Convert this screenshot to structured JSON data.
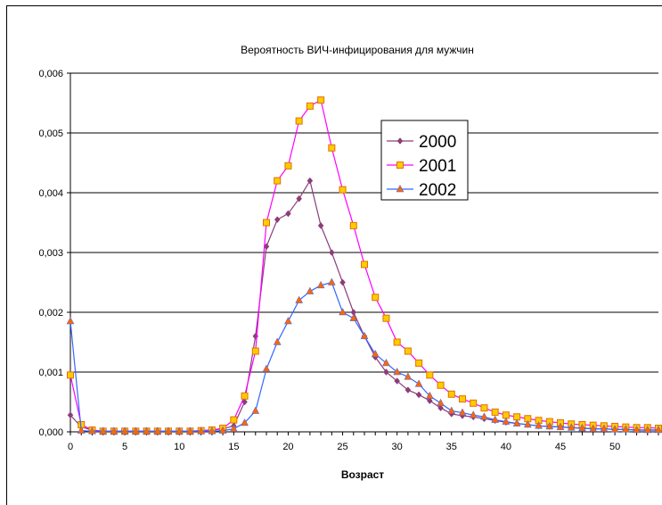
{
  "chart_data": {
    "type": "line",
    "title": "Вероятность ВИЧ-инфицирования для мужчин",
    "xlabel": "Возраст",
    "ylabel": "",
    "xlim": [
      0,
      54
    ],
    "ylim": [
      0,
      0.006
    ],
    "x_ticks": [
      0,
      5,
      10,
      15,
      20,
      25,
      30,
      35,
      40,
      45,
      50
    ],
    "x_tick_labels": [
      "0",
      "5",
      "10",
      "15",
      "20",
      "25",
      "30",
      "35",
      "40",
      "45",
      "50"
    ],
    "y_ticks": [
      0,
      0.001,
      0.002,
      0.003,
      0.004,
      0.005,
      0.006
    ],
    "y_tick_labels": [
      "0,000",
      "0,001",
      "0,002",
      "0,003",
      "0,004",
      "0,005",
      "0,006"
    ],
    "grid": true,
    "legend_position": "upper-right (inside plot)",
    "x": [
      0,
      1,
      2,
      3,
      4,
      5,
      6,
      7,
      8,
      9,
      10,
      11,
      12,
      13,
      14,
      15,
      16,
      17,
      18,
      19,
      20,
      21,
      22,
      23,
      24,
      25,
      26,
      27,
      28,
      29,
      30,
      31,
      32,
      33,
      34,
      35,
      36,
      37,
      38,
      39,
      40,
      41,
      42,
      43,
      44,
      45,
      46,
      47,
      48,
      49,
      50,
      51,
      52,
      53,
      54
    ],
    "series": [
      {
        "name": "2000",
        "color": "#8b3d7a",
        "marker": "diamond",
        "values": [
          0.00028,
          8e-05,
          3e-05,
          1e-05,
          1e-05,
          1e-05,
          1e-05,
          1e-05,
          1e-05,
          1e-05,
          1e-05,
          1e-05,
          2e-05,
          3e-05,
          5e-05,
          0.0001,
          0.0005,
          0.0016,
          0.0031,
          0.00355,
          0.00365,
          0.0039,
          0.0042,
          0.00345,
          0.003,
          0.0025,
          0.002,
          0.0016,
          0.00125,
          0.001,
          0.00085,
          0.0007,
          0.00062,
          0.00052,
          0.0004,
          0.0003,
          0.00027,
          0.00025,
          0.00022,
          0.00019,
          0.00016,
          0.00014,
          0.00012,
          0.0001,
          9e-05,
          8e-05,
          7e-05,
          6e-05,
          5e-05,
          5e-05,
          4e-05,
          4e-05,
          3e-05,
          3e-05,
          3e-05
        ]
      },
      {
        "name": "2001",
        "color": "#ff00ff",
        "marker": "square",
        "marker_fill": "#ffcc00",
        "values": [
          0.00095,
          0.00012,
          3e-05,
          1e-05,
          1e-05,
          1e-05,
          1e-05,
          1e-05,
          1e-05,
          1e-05,
          1e-05,
          1e-05,
          2e-05,
          3e-05,
          6e-05,
          0.0002,
          0.0006,
          0.00135,
          0.0035,
          0.0042,
          0.00445,
          0.0052,
          0.00545,
          0.00555,
          0.00475,
          0.00405,
          0.00345,
          0.0028,
          0.00225,
          0.0019,
          0.0015,
          0.00135,
          0.00115,
          0.00095,
          0.00078,
          0.00063,
          0.00055,
          0.00048,
          0.0004,
          0.00033,
          0.00028,
          0.00025,
          0.00022,
          0.00019,
          0.00017,
          0.00015,
          0.00013,
          0.00012,
          0.00011,
          0.0001,
          9e-05,
          8e-05,
          7e-05,
          7e-05,
          6e-05
        ]
      },
      {
        "name": "2002",
        "color": "#3366ff",
        "marker": "triangle",
        "marker_fill": "#ff6600",
        "values": [
          0.00185,
          2e-05,
          1e-05,
          1e-05,
          1e-05,
          1e-05,
          1e-05,
          1e-05,
          1e-05,
          1e-05,
          1e-05,
          1e-05,
          1e-05,
          1e-05,
          2e-05,
          5e-05,
          0.00015,
          0.00035,
          0.00105,
          0.0015,
          0.00185,
          0.0022,
          0.00235,
          0.00245,
          0.0025,
          0.002,
          0.0019,
          0.0016,
          0.0013,
          0.00115,
          0.001,
          0.00092,
          0.0008,
          0.0006,
          0.00048,
          0.00035,
          0.00032,
          0.00028,
          0.00025,
          0.0002,
          0.00017,
          0.00014,
          0.00012,
          0.0001,
          9e-05,
          8e-05,
          7e-05,
          6e-05,
          5e-05,
          5e-05,
          4e-05,
          4e-05,
          3e-05,
          3e-05,
          3e-05
        ]
      }
    ]
  }
}
